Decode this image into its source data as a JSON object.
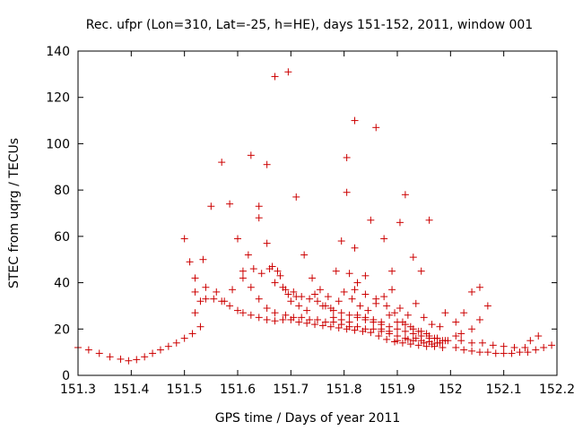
{
  "chart_data": {
    "type": "scatter",
    "title": "Rec. ufpr (Lon=310, Lat=-25, h=HE), days 151-152, 2011, window 001",
    "xlabel": "GPS time / Days of year 2011",
    "ylabel": "STEC from uqrg / TECUs",
    "xlim": [
      151.3,
      152.2
    ],
    "ylim": [
      0,
      140
    ],
    "xticks": [
      151.3,
      151.4,
      151.5,
      151.6,
      151.7,
      151.8,
      151.9,
      152,
      152.1,
      152.2
    ],
    "xtick_labels": [
      "151.3",
      "151.4",
      "151.5",
      "151.6",
      "151.7",
      "151.8",
      "151.9",
      "152",
      "152.1",
      "152.2"
    ],
    "yticks": [
      0,
      20,
      40,
      60,
      80,
      100,
      120,
      140
    ],
    "ytick_labels": [
      "0",
      "20",
      "40",
      "60",
      "80",
      "100",
      "120",
      "140"
    ],
    "grid": false,
    "marker": "plus",
    "color": "#cc0000",
    "points": [
      [
        151.3,
        12
      ],
      [
        151.32,
        11
      ],
      [
        151.34,
        9.5
      ],
      [
        151.36,
        8
      ],
      [
        151.38,
        7
      ],
      [
        151.395,
        6.3
      ],
      [
        151.41,
        6.8
      ],
      [
        151.425,
        8
      ],
      [
        151.44,
        9.5
      ],
      [
        151.455,
        11
      ],
      [
        151.47,
        12.5
      ],
      [
        151.485,
        14
      ],
      [
        151.5,
        16
      ],
      [
        151.515,
        18
      ],
      [
        151.53,
        21
      ],
      [
        151.5,
        59
      ],
      [
        151.51,
        49
      ],
      [
        151.52,
        42
      ],
      [
        151.535,
        50
      ],
      [
        151.55,
        73
      ],
      [
        151.57,
        92
      ],
      [
        151.585,
        74
      ],
      [
        151.6,
        59
      ],
      [
        151.625,
        95
      ],
      [
        151.64,
        73
      ],
      [
        151.655,
        91
      ],
      [
        151.67,
        129
      ],
      [
        151.695,
        131
      ],
      [
        151.71,
        77
      ],
      [
        151.52,
        27
      ],
      [
        151.53,
        32
      ],
      [
        151.54,
        33
      ],
      [
        151.555,
        33
      ],
      [
        151.57,
        32
      ],
      [
        151.585,
        30
      ],
      [
        151.6,
        28
      ],
      [
        151.61,
        27
      ],
      [
        151.625,
        26
      ],
      [
        151.64,
        25
      ],
      [
        151.655,
        24
      ],
      [
        151.67,
        23.5
      ],
      [
        151.685,
        24
      ],
      [
        151.7,
        24
      ],
      [
        151.715,
        23
      ],
      [
        151.73,
        22.5
      ],
      [
        151.745,
        22
      ],
      [
        151.76,
        21.5
      ],
      [
        151.775,
        21
      ],
      [
        151.79,
        20.5
      ],
      [
        151.805,
        20
      ],
      [
        151.82,
        19.5
      ],
      [
        151.835,
        19
      ],
      [
        151.85,
        18.5
      ],
      [
        151.865,
        17
      ],
      [
        151.88,
        15.5
      ],
      [
        151.895,
        14.5
      ],
      [
        151.91,
        14
      ],
      [
        151.925,
        13.5
      ],
      [
        151.94,
        13
      ],
      [
        151.955,
        12.5
      ],
      [
        151.97,
        12.5
      ],
      [
        151.985,
        12
      ],
      [
        151.52,
        36
      ],
      [
        151.54,
        38
      ],
      [
        151.56,
        36
      ],
      [
        151.575,
        32
      ],
      [
        151.59,
        37
      ],
      [
        151.61,
        42
      ],
      [
        151.625,
        38
      ],
      [
        151.64,
        33
      ],
      [
        151.655,
        29
      ],
      [
        151.67,
        27
      ],
      [
        151.69,
        26
      ],
      [
        151.705,
        25
      ],
      [
        151.72,
        25
      ],
      [
        151.735,
        24
      ],
      [
        151.75,
        24
      ],
      [
        151.765,
        23
      ],
      [
        151.78,
        23
      ],
      [
        151.795,
        22
      ],
      [
        151.81,
        21
      ],
      [
        151.825,
        21
      ],
      [
        151.84,
        20
      ],
      [
        151.855,
        20
      ],
      [
        151.87,
        19
      ],
      [
        151.885,
        18
      ],
      [
        151.9,
        17
      ],
      [
        151.915,
        16
      ],
      [
        151.93,
        15
      ],
      [
        151.945,
        15
      ],
      [
        151.96,
        14.5
      ],
      [
        151.975,
        14
      ],
      [
        151.61,
        45
      ],
      [
        151.63,
        46
      ],
      [
        151.645,
        44
      ],
      [
        151.66,
        46
      ],
      [
        151.675,
        45
      ],
      [
        151.69,
        37
      ],
      [
        151.705,
        36
      ],
      [
        151.72,
        34
      ],
      [
        151.735,
        33
      ],
      [
        151.75,
        32
      ],
      [
        151.765,
        30
      ],
      [
        151.78,
        28
      ],
      [
        151.795,
        27
      ],
      [
        151.81,
        26
      ],
      [
        151.825,
        25
      ],
      [
        151.84,
        24
      ],
      [
        151.855,
        23
      ],
      [
        151.87,
        22
      ],
      [
        151.885,
        21
      ],
      [
        151.9,
        20
      ],
      [
        151.915,
        19
      ],
      [
        151.93,
        18
      ],
      [
        151.945,
        17
      ],
      [
        151.96,
        16
      ],
      [
        151.975,
        16
      ],
      [
        151.62,
        52
      ],
      [
        151.64,
        68
      ],
      [
        151.655,
        57
      ],
      [
        151.665,
        47
      ],
      [
        151.68,
        43
      ],
      [
        151.695,
        35
      ],
      [
        151.71,
        34
      ],
      [
        151.725,
        52
      ],
      [
        151.74,
        42
      ],
      [
        151.755,
        37
      ],
      [
        151.77,
        34
      ],
      [
        151.785,
        45
      ],
      [
        151.795,
        58
      ],
      [
        151.805,
        94
      ],
      [
        151.805,
        79
      ],
      [
        151.81,
        44
      ],
      [
        151.82,
        110
      ],
      [
        151.82,
        55
      ],
      [
        151.825,
        40
      ],
      [
        151.84,
        43
      ],
      [
        151.85,
        67
      ],
      [
        151.86,
        107
      ],
      [
        151.875,
        59
      ],
      [
        151.89,
        45
      ],
      [
        151.905,
        66
      ],
      [
        151.915,
        78
      ],
      [
        151.93,
        51
      ],
      [
        151.945,
        45
      ],
      [
        151.96,
        67
      ],
      [
        151.67,
        40
      ],
      [
        151.685,
        38
      ],
      [
        151.7,
        32
      ],
      [
        151.715,
        30
      ],
      [
        151.73,
        28
      ],
      [
        151.745,
        35
      ],
      [
        151.76,
        30
      ],
      [
        151.775,
        29
      ],
      [
        151.79,
        32
      ],
      [
        151.8,
        36
      ],
      [
        151.815,
        33
      ],
      [
        151.83,
        30
      ],
      [
        151.845,
        28
      ],
      [
        151.86,
        31
      ],
      [
        151.875,
        34
      ],
      [
        151.89,
        37
      ],
      [
        151.905,
        29
      ],
      [
        151.92,
        26
      ],
      [
        151.935,
        31
      ],
      [
        151.95,
        25
      ],
      [
        151.965,
        22
      ],
      [
        151.98,
        21
      ],
      [
        151.78,
        25
      ],
      [
        151.795,
        24
      ],
      [
        151.81,
        23
      ],
      [
        151.825,
        26
      ],
      [
        151.84,
        25
      ],
      [
        151.855,
        24
      ],
      [
        151.87,
        23
      ],
      [
        151.885,
        26
      ],
      [
        151.9,
        23
      ],
      [
        151.915,
        22
      ],
      [
        151.93,
        20
      ],
      [
        151.945,
        19
      ],
      [
        151.96,
        17
      ],
      [
        151.975,
        16
      ],
      [
        151.99,
        15
      ],
      [
        151.82,
        37
      ],
      [
        151.84,
        35
      ],
      [
        151.86,
        33
      ],
      [
        151.88,
        30
      ],
      [
        151.895,
        27
      ],
      [
        151.91,
        23
      ],
      [
        151.925,
        21
      ],
      [
        151.94,
        19
      ],
      [
        151.955,
        18
      ],
      [
        151.97,
        16
      ],
      [
        151.985,
        15
      ],
      [
        151.99,
        27
      ],
      [
        152.01,
        23
      ],
      [
        152.025,
        27
      ],
      [
        152.04,
        36
      ],
      [
        152.055,
        38
      ],
      [
        152.07,
        30
      ],
      [
        152.055,
        24
      ],
      [
        152.04,
        20
      ],
      [
        152.02,
        18
      ],
      [
        152.01,
        17
      ],
      [
        152.01,
        12
      ],
      [
        152.025,
        11
      ],
      [
        152.04,
        10.5
      ],
      [
        152.055,
        10
      ],
      [
        152.07,
        10
      ],
      [
        152.085,
        9.5
      ],
      [
        152.1,
        9.5
      ],
      [
        152.115,
        9.5
      ],
      [
        152.13,
        10
      ],
      [
        152.145,
        10
      ],
      [
        152.16,
        11
      ],
      [
        152.175,
        12
      ],
      [
        152.19,
        13
      ],
      [
        152.02,
        15
      ],
      [
        152.04,
        14
      ],
      [
        152.06,
        14
      ],
      [
        152.08,
        13
      ],
      [
        152.1,
        12.5
      ],
      [
        152.12,
        12
      ],
      [
        152.14,
        12
      ],
      [
        152.15,
        15
      ],
      [
        152.165,
        17
      ],
      [
        151.87,
        20
      ],
      [
        151.885,
        19
      ],
      [
        151.9,
        15
      ],
      [
        151.92,
        15.5
      ],
      [
        151.935,
        16
      ],
      [
        151.95,
        14
      ],
      [
        151.965,
        13.5
      ],
      [
        151.98,
        14
      ],
      [
        151.995,
        15
      ]
    ]
  }
}
